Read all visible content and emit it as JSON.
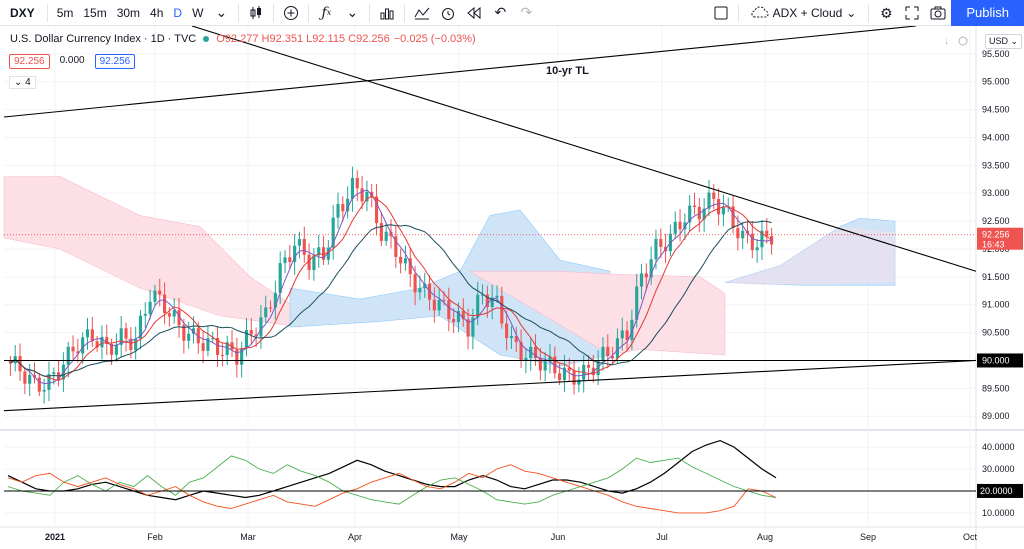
{
  "toolbar": {
    "symbol": "DXY",
    "intervals": [
      "5m",
      "15m",
      "30m",
      "4h",
      "D",
      "W"
    ],
    "active_interval": "D",
    "indicators_label": "ADX + Cloud",
    "publish_label": "Publish"
  },
  "legend": {
    "title": "U.S. Dollar Currency Index · 1D · TVC",
    "ohlc": "O92.277 H92.351 L92.115 C92.256",
    "change": "−0.025 (−0.03%)",
    "badge_price": "92.256",
    "badge_zero": "0.000",
    "badge_price2": "92.256",
    "collapse": "4",
    "currency": "USD"
  },
  "colors": {
    "up": "#26a69a",
    "down": "#ef5350",
    "cloud_bull": "#cfe4f7",
    "cloud_bear": "#fde0e6",
    "ma_fast": "#e53935",
    "ma_mid": "#7e57c2",
    "ma_slow": "#1b4f5a"
  },
  "chart_data": [
    {
      "type": "candlestick",
      "annotation": "10-yr TL",
      "y_ticks": [
        89.0,
        89.5,
        90.0,
        90.5,
        91.0,
        91.5,
        92.0,
        92.5,
        93.0,
        93.5,
        94.0,
        94.5,
        95.0,
        95.5
      ],
      "ylim": [
        88.95,
        96.0
      ],
      "x_labels": [
        "2021",
        "Feb",
        "Mar",
        "Apr",
        "May",
        "Jun",
        "Jul",
        "Aug",
        "Sep",
        "Oct"
      ],
      "last_price": "92.256",
      "countdown": "16:43",
      "hline_value": 90.0,
      "hline_label": "90.000",
      "close_path": [
        90.0,
        89.85,
        89.55,
        89.6,
        89.95,
        90.3,
        90.45,
        90.2,
        90.4,
        90.35,
        91.2,
        91.0,
        90.6,
        90.4,
        90.3,
        90.2,
        90.1,
        90.5,
        90.8,
        91.6,
        92.1,
        91.8,
        91.9,
        92.7,
        93.1,
        93.0,
        92.3,
        92.0,
        91.5,
        91.2,
        91.0,
        90.8,
        90.6,
        91.2,
        91.0,
        90.3,
        90.1,
        90.0,
        89.85,
        89.7,
        89.75,
        90.0,
        90.2,
        90.5,
        91.5,
        92.0,
        92.2,
        92.6,
        92.7,
        92.9,
        92.6,
        92.2,
        92.1,
        92.26
      ],
      "ichimoku_cloud_bull": [
        [
          1.44,
          92.1,
          91.5
        ],
        [
          1.6,
          92.7,
          91.8
        ],
        [
          1.75,
          92.4,
          91.4
        ],
        [
          2.0,
          91.3,
          90.6
        ]
      ],
      "ichimoku_cloud_bear": [
        [
          0.0,
          93.3,
          92.2
        ],
        [
          0.35,
          92.5,
          91.8
        ],
        [
          0.6,
          91.9,
          90.8
        ],
        [
          0.95,
          91.3,
          90.9
        ]
      ]
    },
    {
      "type": "line",
      "title": "ADX",
      "y_ticks": [
        10.0,
        20.0,
        30.0,
        40.0
      ],
      "ylim": [
        4,
        46
      ],
      "hline_value": 20.0,
      "hline_label": "20.0000",
      "series": [
        {
          "color": "#000000",
          "values": [
            27,
            24,
            21,
            20,
            20,
            21,
            23,
            24,
            22,
            20,
            18,
            17,
            16,
            18,
            20,
            19,
            18,
            17,
            18,
            20,
            22,
            24,
            26,
            28,
            31,
            34,
            32,
            29,
            27,
            25,
            23,
            22,
            22,
            25,
            27,
            25,
            22,
            21,
            23,
            25,
            25,
            24,
            22,
            20,
            19,
            21,
            24,
            28,
            33,
            38,
            41,
            43,
            40,
            35,
            30,
            26
          ]
        },
        {
          "color": "#4caf50",
          "values": [
            22,
            20,
            19,
            18,
            24,
            27,
            23,
            20,
            24,
            22,
            27,
            22,
            18,
            24,
            26,
            31,
            36,
            34,
            30,
            28,
            32,
            29,
            27,
            24,
            20,
            18,
            16,
            15,
            14,
            18,
            22,
            25,
            26,
            23,
            20,
            16,
            15,
            14,
            15,
            18,
            20,
            22,
            24,
            26,
            30,
            35,
            33,
            34,
            35,
            31,
            28,
            25,
            22,
            20,
            18,
            17
          ]
        },
        {
          "color": "#f4511e",
          "values": [
            26,
            24,
            27,
            28,
            24,
            22,
            24,
            26,
            23,
            21,
            18,
            20,
            22,
            18,
            15,
            13,
            12,
            14,
            16,
            18,
            15,
            14,
            13,
            16,
            19,
            21,
            24,
            26,
            28,
            25,
            22,
            21,
            24,
            28,
            26,
            30,
            32,
            29,
            28,
            26,
            24,
            22,
            20,
            18,
            15,
            13,
            12,
            11,
            10,
            10,
            10,
            11,
            13,
            21,
            20,
            17
          ]
        }
      ]
    }
  ]
}
